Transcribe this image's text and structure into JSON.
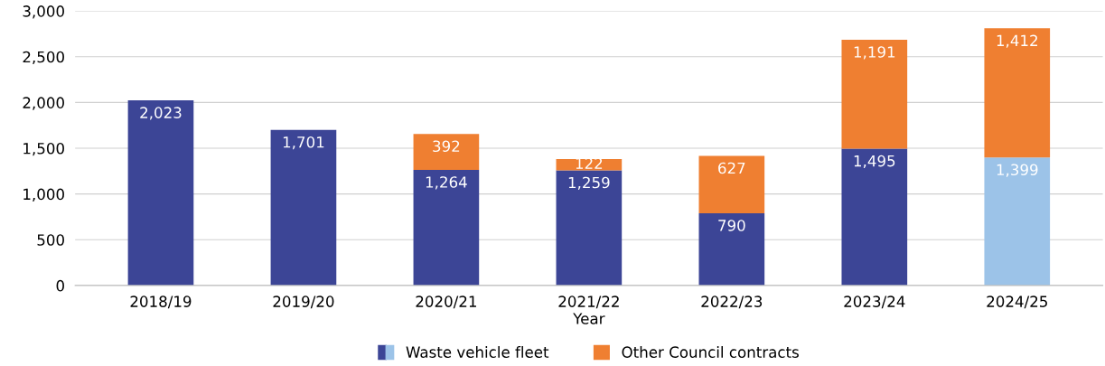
{
  "chart_data": {
    "type": "bar",
    "stacked": true,
    "xlabel": "Year",
    "categories": [
      "2018/19",
      "2019/20",
      "2020/21",
      "2021/22",
      "2022/23",
      "2023/24",
      "2024/25"
    ],
    "series": [
      {
        "name": "Waste vehicle fleet",
        "color": "#3c4596",
        "colors": [
          "#3c4596",
          "#3c4596",
          "#3c4596",
          "#3c4596",
          "#3c4596",
          "#3c4596",
          "#9cc3e8"
        ],
        "values": [
          2023,
          1701,
          1264,
          1259,
          790,
          1495,
          1399
        ],
        "value_labels": [
          "2,023",
          "1,701",
          "1,264",
          "1,259",
          "790",
          "1,495",
          "1,399"
        ]
      },
      {
        "name": "Other Council contracts",
        "color": "#ef7f31",
        "values": [
          null,
          null,
          392,
          122,
          627,
          1191,
          1412
        ],
        "value_labels": [
          null,
          null,
          "392",
          "122",
          "627",
          "1,191",
          "1,412"
        ]
      }
    ],
    "ylim": [
      0,
      3000
    ],
    "yticks": [
      {
        "value": 0,
        "label": "0"
      },
      {
        "value": 500,
        "label": "500"
      },
      {
        "value": 1000,
        "label": "1,000"
      },
      {
        "value": 1500,
        "label": "1,500"
      },
      {
        "value": 2000,
        "label": "2,000"
      },
      {
        "value": 2500,
        "label": "2,500"
      },
      {
        "value": 3000,
        "label": "3,000"
      }
    ],
    "grid": "y",
    "legend": "bottom"
  }
}
